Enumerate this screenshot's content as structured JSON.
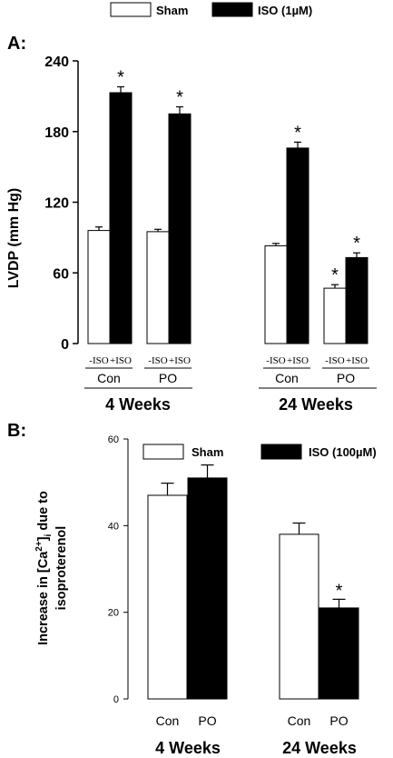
{
  "chart_data": [
    {
      "type": "bar",
      "panel_label": "A:",
      "ylabel": "LVDP (mm Hg)",
      "ylim": [
        0,
        240
      ],
      "yticks": [
        0,
        60,
        120,
        180,
        240
      ],
      "legend": {
        "placement": "top",
        "entries": [
          "Sham",
          "ISO (1µM)"
        ]
      },
      "group_labels": [
        "4 Weeks",
        "24 Weeks"
      ],
      "subgroup_labels": [
        "Con",
        "PO",
        "Con",
        "PO"
      ],
      "bar_labels": [
        "-ISO",
        "+ISO",
        "-ISO",
        "+ISO",
        "-ISO",
        "+ISO",
        "-ISO",
        "+ISO"
      ],
      "series": [
        {
          "name": "Sham",
          "color": "#ffffff",
          "values": [
            96,
            95,
            83,
            47
          ],
          "errors": [
            3,
            2,
            2,
            3
          ],
          "significant": [
            false,
            false,
            false,
            true
          ]
        },
        {
          "name": "ISO (1µM)",
          "color": "#000000",
          "values": [
            213,
            195,
            166,
            73
          ],
          "errors": [
            5,
            6,
            5,
            4
          ],
          "significant": [
            true,
            true,
            true,
            true
          ]
        }
      ],
      "annotation_symbol": "*"
    },
    {
      "type": "bar",
      "panel_label": "B:",
      "ylabel_line1": "Increase in [Ca",
      "ylabel_sup": "2+",
      "ylabel_after": "]",
      "ylabel_sub": "i",
      "ylabel_tail": " due to",
      "ylabel_line2": "isoproterenol",
      "ylim": [
        0,
        60
      ],
      "yticks": [
        0,
        20,
        40,
        60
      ],
      "legend": {
        "placement": "top-right",
        "entries": [
          "Sham",
          "ISO (100µM)"
        ]
      },
      "categories": [
        "Con",
        "PO",
        "Con",
        "PO"
      ],
      "group_labels": [
        "4 Weeks",
        "24 Weeks"
      ],
      "values": [
        47,
        51,
        38,
        21
      ],
      "errors": [
        2.8,
        3,
        2.6,
        2
      ],
      "colors": [
        "#ffffff",
        "#000000",
        "#ffffff",
        "#000000"
      ],
      "significant": [
        false,
        false,
        false,
        true
      ],
      "annotation_symbol": "*"
    }
  ]
}
